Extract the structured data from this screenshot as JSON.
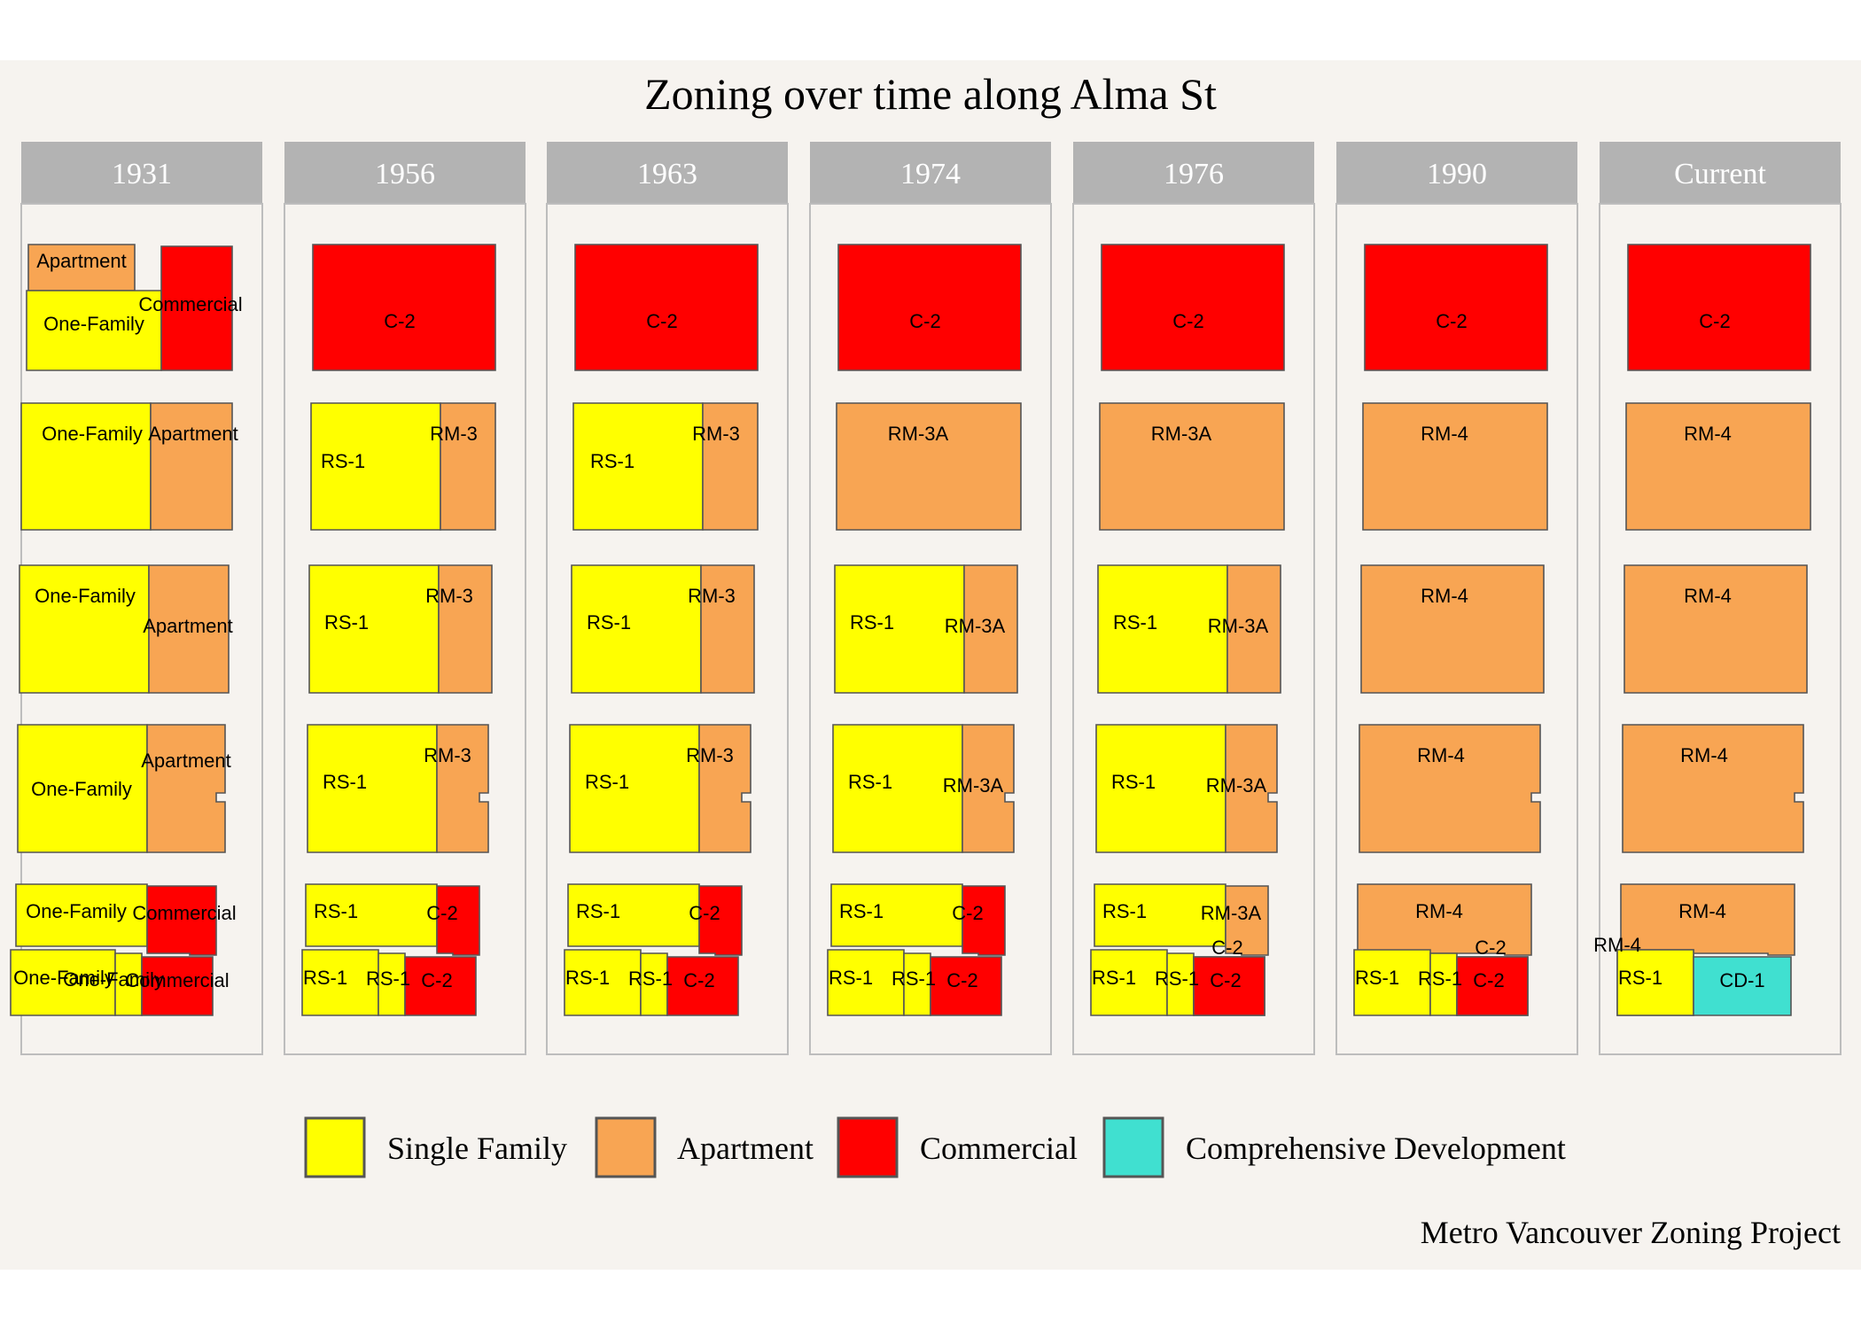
{
  "title": "Zoning over time along Alma St",
  "caption": "Metro Vancouver Zoning Project",
  "colors": {
    "background": "#f6f3ef",
    "strip": "#b3b3b3",
    "panel_border": "#bdbdbd",
    "Single Family": "#ffff00",
    "Apartment": "#f8a553",
    "Commercial": "#ff0000",
    "Comprehensive Development": "#40e0d0"
  },
  "legend": [
    {
      "key": "Single Family",
      "label": "Single Family"
    },
    {
      "key": "Apartment",
      "label": "Apartment"
    },
    {
      "key": "Commercial",
      "label": "Commercial"
    },
    {
      "key": "Comprehensive Development",
      "label": "Comprehensive Development"
    }
  ],
  "panels": [
    {
      "year": "1931",
      "zones": [
        {
          "cat": "Apartment",
          "label": "Apartment"
        },
        {
          "cat": "Single Family",
          "label": "One-Family"
        },
        {
          "cat": "Commercial",
          "label": "Commercial"
        },
        {
          "cat": "Single Family",
          "label": "One-Family"
        },
        {
          "cat": "Apartment",
          "label": "Apartment"
        },
        {
          "cat": "Single Family",
          "label": "One-Family"
        },
        {
          "cat": "Apartment",
          "label": "Apartment"
        },
        {
          "cat": "Single Family",
          "label": "One-Family"
        },
        {
          "cat": "Apartment",
          "label": "Apartment"
        },
        {
          "cat": "Single Family",
          "label": "One-Family"
        },
        {
          "cat": "Commercial",
          "label": "Commercial"
        },
        {
          "cat": "Single Family",
          "label": "One-Family"
        },
        {
          "cat": "Single Family",
          "label": "One-Family"
        },
        {
          "cat": "Commercial",
          "label": "Commercial"
        }
      ]
    },
    {
      "year": "1956",
      "zones": [
        {
          "cat": "Commercial",
          "label": "C-2"
        },
        {
          "cat": "Single Family",
          "label": "RS-1"
        },
        {
          "cat": "Apartment",
          "label": "RM-3"
        },
        {
          "cat": "Single Family",
          "label": "RS-1"
        },
        {
          "cat": "Apartment",
          "label": "RM-3"
        },
        {
          "cat": "Single Family",
          "label": "RS-1"
        },
        {
          "cat": "Apartment",
          "label": "RM-3"
        },
        {
          "cat": "Single Family",
          "label": "RS-1"
        },
        {
          "cat": "Commercial",
          "label": "C-2"
        },
        {
          "cat": "Single Family",
          "label": "RS-1"
        },
        {
          "cat": "Single Family",
          "label": "RS-1"
        },
        {
          "cat": "Commercial",
          "label": "C-2"
        }
      ]
    },
    {
      "year": "1963",
      "zones": [
        {
          "cat": "Commercial",
          "label": "C-2"
        },
        {
          "cat": "Single Family",
          "label": "RS-1"
        },
        {
          "cat": "Apartment",
          "label": "RM-3"
        },
        {
          "cat": "Single Family",
          "label": "RS-1"
        },
        {
          "cat": "Apartment",
          "label": "RM-3"
        },
        {
          "cat": "Single Family",
          "label": "RS-1"
        },
        {
          "cat": "Apartment",
          "label": "RM-3"
        },
        {
          "cat": "Single Family",
          "label": "RS-1"
        },
        {
          "cat": "Commercial",
          "label": "C-2"
        },
        {
          "cat": "Single Family",
          "label": "RS-1"
        },
        {
          "cat": "Single Family",
          "label": "RS-1"
        },
        {
          "cat": "Commercial",
          "label": "C-2"
        }
      ]
    },
    {
      "year": "1974",
      "zones": [
        {
          "cat": "Commercial",
          "label": "C-2"
        },
        {
          "cat": "Apartment",
          "label": "RM-3A"
        },
        {
          "cat": "Single Family",
          "label": "RS-1"
        },
        {
          "cat": "Apartment",
          "label": "RM-3A"
        },
        {
          "cat": "Single Family",
          "label": "RS-1"
        },
        {
          "cat": "Apartment",
          "label": "RM-3A"
        },
        {
          "cat": "Single Family",
          "label": "RS-1"
        },
        {
          "cat": "Commercial",
          "label": "C-2"
        },
        {
          "cat": "Single Family",
          "label": "RS-1"
        },
        {
          "cat": "Single Family",
          "label": "RS-1"
        },
        {
          "cat": "Commercial",
          "label": "C-2"
        }
      ]
    },
    {
      "year": "1976",
      "zones": [
        {
          "cat": "Commercial",
          "label": "C-2"
        },
        {
          "cat": "Apartment",
          "label": "RM-3A"
        },
        {
          "cat": "Single Family",
          "label": "RS-1"
        },
        {
          "cat": "Apartment",
          "label": "RM-3A"
        },
        {
          "cat": "Single Family",
          "label": "RS-1"
        },
        {
          "cat": "Apartment",
          "label": "RM-3A"
        },
        {
          "cat": "Single Family",
          "label": "RS-1"
        },
        {
          "cat": "Apartment",
          "label": "RM-3A"
        },
        {
          "cat": "Single Family",
          "label": "RS-1"
        },
        {
          "cat": "Single Family",
          "label": "RS-1"
        },
        {
          "cat": "Commercial",
          "label": "C-2"
        },
        {
          "cat": "Commercial",
          "label": "C-2"
        }
      ]
    },
    {
      "year": "1990",
      "zones": [
        {
          "cat": "Commercial",
          "label": "C-2"
        },
        {
          "cat": "Apartment",
          "label": "RM-4"
        },
        {
          "cat": "Apartment",
          "label": "RM-4"
        },
        {
          "cat": "Apartment",
          "label": "RM-4"
        },
        {
          "cat": "Apartment",
          "label": "RM-4"
        },
        {
          "cat": "Single Family",
          "label": "RS-1"
        },
        {
          "cat": "Single Family",
          "label": "RS-1"
        },
        {
          "cat": "Commercial",
          "label": "C-2"
        },
        {
          "cat": "Commercial",
          "label": "C-2"
        }
      ]
    },
    {
      "year": "Current",
      "zones": [
        {
          "cat": "Commercial",
          "label": "C-2"
        },
        {
          "cat": "Apartment",
          "label": "RM-4"
        },
        {
          "cat": "Apartment",
          "label": "RM-4"
        },
        {
          "cat": "Apartment",
          "label": "RM-4"
        },
        {
          "cat": "Apartment",
          "label": "RM-4"
        },
        {
          "cat": "Apartment",
          "label": "RM-4"
        },
        {
          "cat": "Single Family",
          "label": "RS-1"
        },
        {
          "cat": "Comprehensive Development",
          "label": "CD-1"
        }
      ]
    }
  ]
}
